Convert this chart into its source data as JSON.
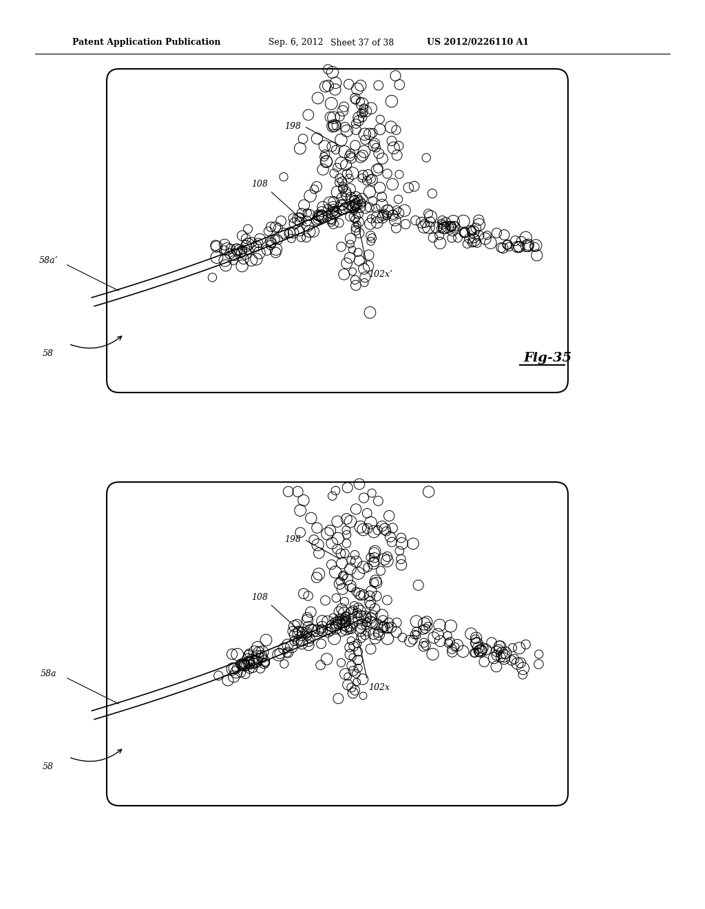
{
  "background_color": "#ffffff",
  "header_text": "Patent Application Publication",
  "header_date": "Sep. 6, 2012",
  "header_sheet": "Sheet 37 of 38",
  "header_patent": "US 2012/0226110 A1",
  "fig_label": "Fig-35",
  "panel1_labels": {
    "58": "58",
    "58a": "58a’",
    "108": "108",
    "198": "198",
    "102x": "102x’"
  },
  "panel2_labels": {
    "58": "58",
    "58a": "58a",
    "108": "108",
    "198": "198",
    "102x": "102x"
  }
}
